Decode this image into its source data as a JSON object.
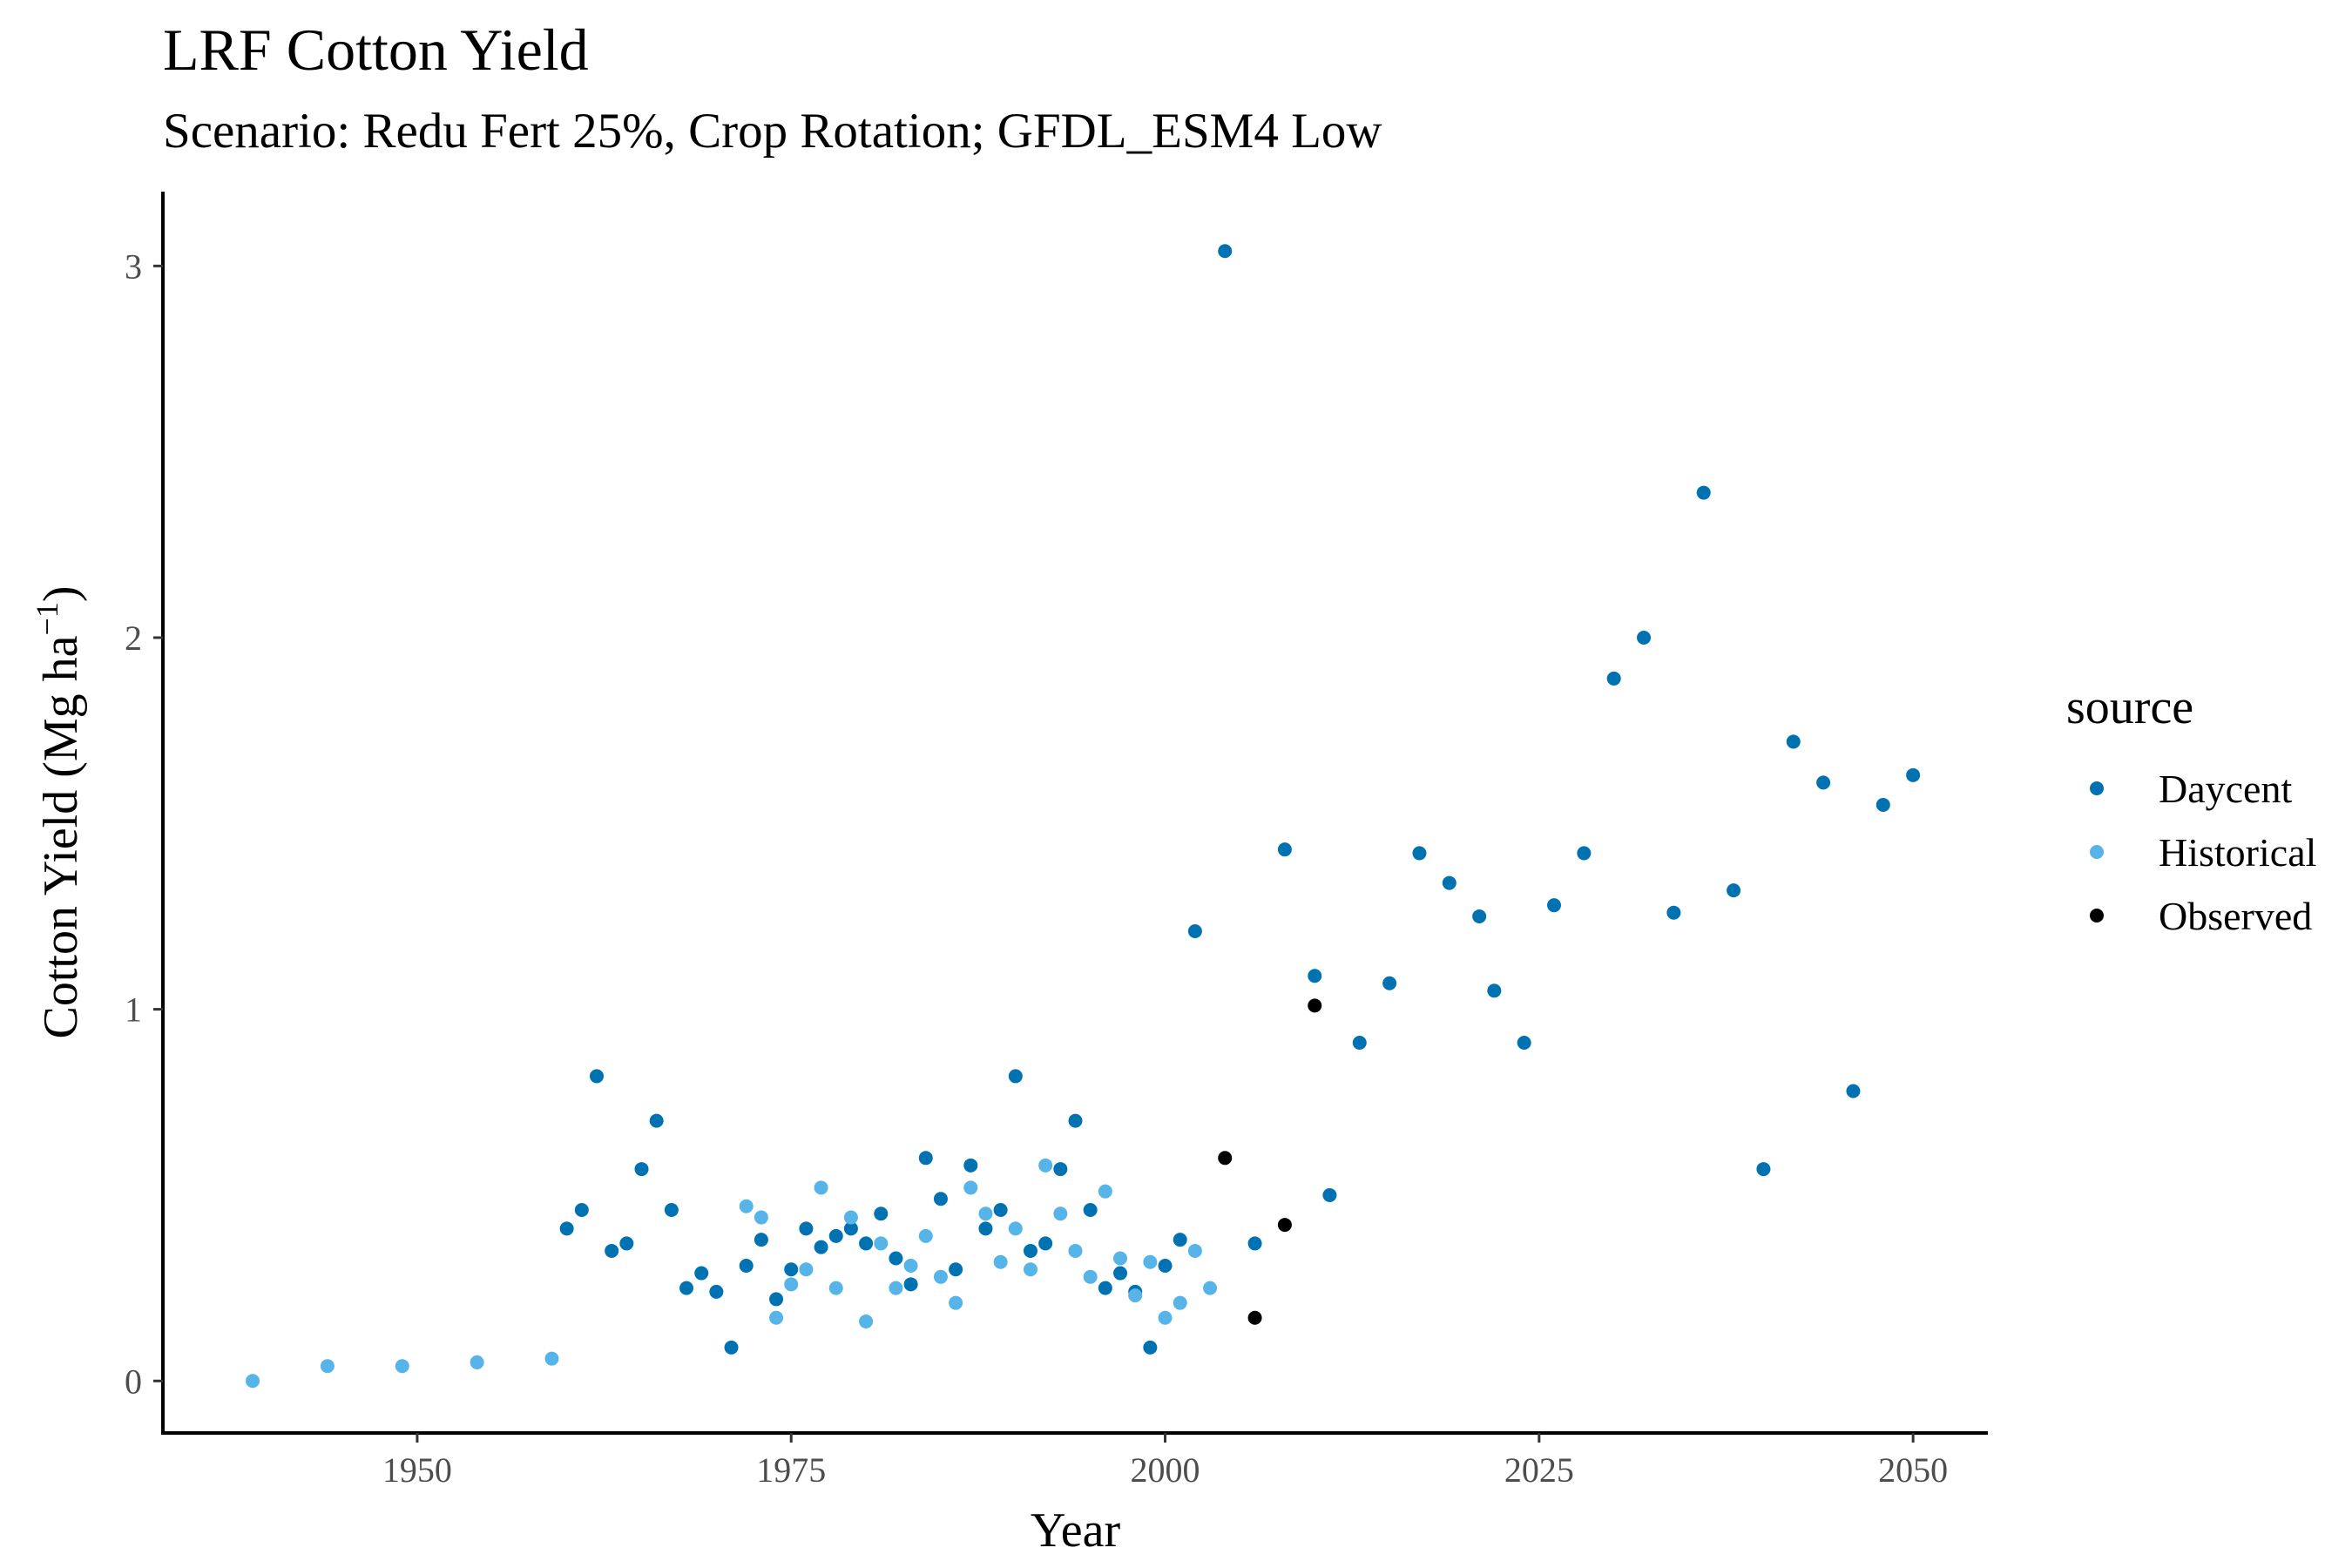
{
  "chart_data": {
    "type": "scatter",
    "title": "LRF Cotton Yield",
    "subtitle": "Scenario: Redu Fert 25%, Crop Rotation; GFDL_ESM4 Low",
    "xlabel": "Year",
    "ylabel": "Cotton Yield (Mg ha",
    "ylabel_superscript": "−1",
    "ylabel_close": ")",
    "xlim": [
      1933,
      2055
    ],
    "ylim": [
      -0.14,
      3.2
    ],
    "xticks": [
      1950,
      1975,
      2000,
      2025,
      2050
    ],
    "yticks": [
      0,
      1,
      2,
      3
    ],
    "grid": false,
    "legend": {
      "title": "source",
      "position": "right"
    },
    "series": [
      {
        "name": "Daycent",
        "color": "#0072B2",
        "points": [
          [
            1960,
            0.41
          ],
          [
            1961,
            0.46
          ],
          [
            1962,
            0.82
          ],
          [
            1963,
            0.35
          ],
          [
            1964,
            0.37
          ],
          [
            1965,
            0.57
          ],
          [
            1966,
            0.7
          ],
          [
            1967,
            0.46
          ],
          [
            1968,
            0.25
          ],
          [
            1969,
            0.29
          ],
          [
            1970,
            0.24
          ],
          [
            1971,
            0.09
          ],
          [
            1972,
            0.31
          ],
          [
            1973,
            0.38
          ],
          [
            1974,
            0.22
          ],
          [
            1975,
            0.3
          ],
          [
            1976,
            0.41
          ],
          [
            1977,
            0.36
          ],
          [
            1978,
            0.39
          ],
          [
            1979,
            0.41
          ],
          [
            1980,
            0.37
          ],
          [
            1981,
            0.45
          ],
          [
            1982,
            0.33
          ],
          [
            1983,
            0.26
          ],
          [
            1984,
            0.6
          ],
          [
            1985,
            0.49
          ],
          [
            1986,
            0.3
          ],
          [
            1987,
            0.58
          ],
          [
            1988,
            0.41
          ],
          [
            1989,
            0.46
          ],
          [
            1990,
            0.82
          ],
          [
            1991,
            0.35
          ],
          [
            1992,
            0.37
          ],
          [
            1993,
            0.57
          ],
          [
            1994,
            0.7
          ],
          [
            1995,
            0.46
          ],
          [
            1996,
            0.25
          ],
          [
            1997,
            0.29
          ],
          [
            1998,
            0.24
          ],
          [
            1999,
            0.09
          ],
          [
            2000,
            0.31
          ],
          [
            2001,
            0.38
          ],
          [
            2002,
            1.21
          ],
          [
            2004,
            3.04
          ],
          [
            2006,
            0.37
          ],
          [
            2008,
            1.43
          ],
          [
            2010,
            1.09
          ],
          [
            2011,
            0.5
          ],
          [
            2013,
            0.91
          ],
          [
            2015,
            1.07
          ],
          [
            2017,
            1.42
          ],
          [
            2019,
            1.34
          ],
          [
            2021,
            1.25
          ],
          [
            2022,
            1.05
          ],
          [
            2024,
            0.91
          ],
          [
            2026,
            1.28
          ],
          [
            2028,
            1.42
          ],
          [
            2030,
            1.89
          ],
          [
            2032,
            2.0
          ],
          [
            2034,
            1.26
          ],
          [
            2036,
            2.39
          ],
          [
            2038,
            1.32
          ],
          [
            2040,
            0.57
          ],
          [
            2042,
            1.72
          ],
          [
            2044,
            1.61
          ],
          [
            2046,
            0.78
          ],
          [
            2048,
            1.55
          ],
          [
            2050,
            1.63
          ]
        ]
      },
      {
        "name": "Historical",
        "color": "#56B4E9",
        "points": [
          [
            1939,
            0.0
          ],
          [
            1944,
            0.04
          ],
          [
            1949,
            0.04
          ],
          [
            1954,
            0.05
          ],
          [
            1959,
            0.06
          ],
          [
            1972,
            0.47
          ],
          [
            1973,
            0.44
          ],
          [
            1974,
            0.17
          ],
          [
            1975,
            0.26
          ],
          [
            1976,
            0.3
          ],
          [
            1977,
            0.52
          ],
          [
            1978,
            0.25
          ],
          [
            1979,
            0.44
          ],
          [
            1980,
            0.16
          ],
          [
            1981,
            0.37
          ],
          [
            1982,
            0.25
          ],
          [
            1983,
            0.31
          ],
          [
            1984,
            0.39
          ],
          [
            1985,
            0.28
          ],
          [
            1986,
            0.21
          ],
          [
            1987,
            0.52
          ],
          [
            1988,
            0.45
          ],
          [
            1989,
            0.32
          ],
          [
            1990,
            0.41
          ],
          [
            1991,
            0.3
          ],
          [
            1992,
            0.58
          ],
          [
            1993,
            0.45
          ],
          [
            1994,
            0.35
          ],
          [
            1995,
            0.28
          ],
          [
            1996,
            0.51
          ],
          [
            1997,
            0.33
          ],
          [
            1998,
            0.23
          ],
          [
            1999,
            0.32
          ],
          [
            2000,
            0.17
          ],
          [
            2001,
            0.21
          ],
          [
            2002,
            0.35
          ],
          [
            2003,
            0.25
          ]
        ]
      },
      {
        "name": "Observed",
        "color": "#000000",
        "points": [
          [
            2004,
            0.6
          ],
          [
            2006,
            0.17
          ],
          [
            2008,
            0.42
          ],
          [
            2010,
            1.01
          ]
        ]
      }
    ]
  }
}
